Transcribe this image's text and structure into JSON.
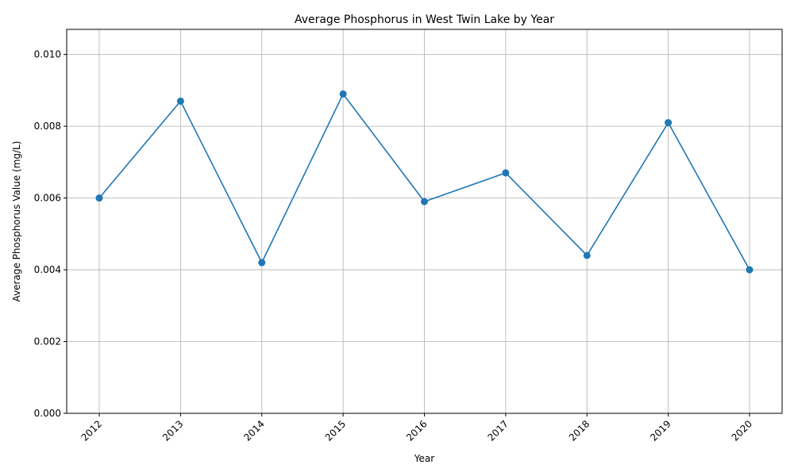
{
  "chart_data": {
    "type": "line",
    "title": "Average Phosphorus in West Twin Lake by Year",
    "xlabel": "Year",
    "ylabel": "Average Phosphorus Value (mg/L)",
    "categories": [
      "2012",
      "2013",
      "2014",
      "2015",
      "2016",
      "2017",
      "2018",
      "2019",
      "2020"
    ],
    "values": [
      0.006,
      0.0087,
      0.0042,
      0.0089,
      0.0059,
      0.0067,
      0.0044,
      0.0081,
      0.004
    ],
    "ylim": [
      0,
      0.0107
    ],
    "yticks": [
      "0.000",
      "0.002",
      "0.004",
      "0.006",
      "0.008",
      "0.010"
    ],
    "grid": true,
    "marker": "circle",
    "colors": {
      "line": "#1f77b4",
      "grid": "#b0b0b0",
      "axis": "#000000"
    }
  }
}
